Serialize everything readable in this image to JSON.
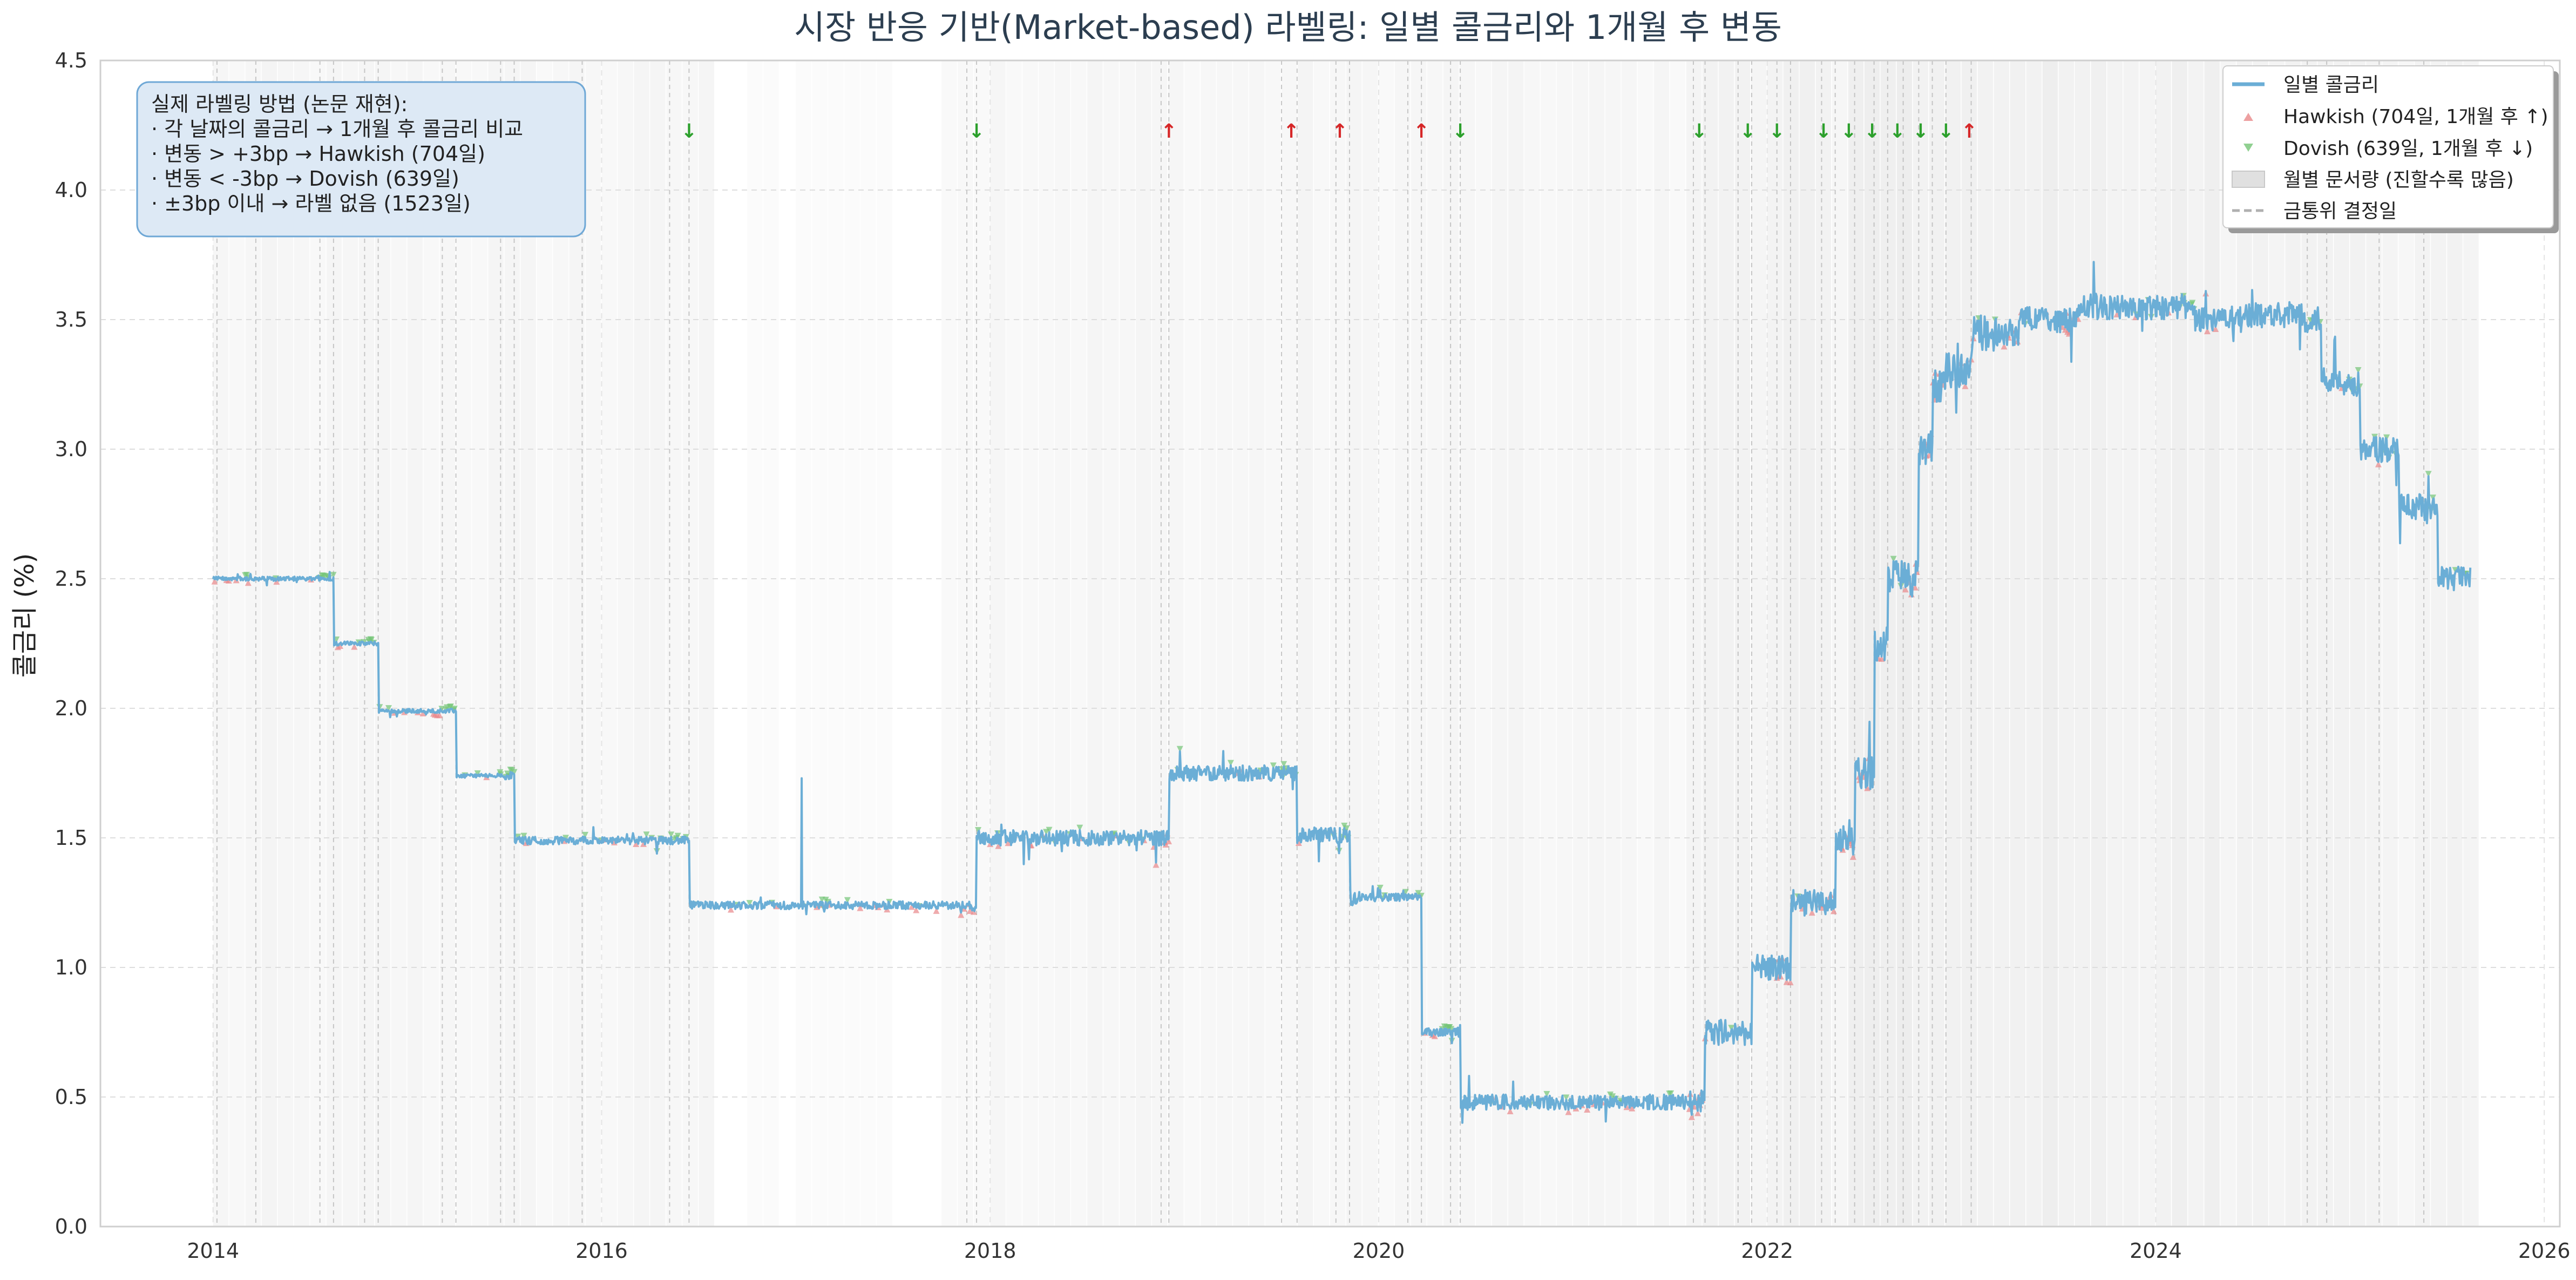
{
  "chart_data": {
    "type": "line",
    "title": "시장 반응 기반(Market-based) 라벨링: 일별 콜금리와 1개월 후 변동",
    "xlabel": "",
    "ylabel": "콜금리 (%)",
    "xlim": [
      2013.42,
      2026.08
    ],
    "ylim": [
      0.0,
      4.5
    ],
    "x_ticks": [
      {
        "value": 2014,
        "label": "2014"
      },
      {
        "value": 2016,
        "label": "2016"
      },
      {
        "value": 2018,
        "label": "2018"
      },
      {
        "value": 2020,
        "label": "2020"
      },
      {
        "value": 2022,
        "label": "2022"
      },
      {
        "value": 2024,
        "label": "2024"
      },
      {
        "value": 2026,
        "label": "2026"
      }
    ],
    "y_ticks": [
      {
        "value": 0.0,
        "label": "0.0"
      },
      {
        "value": 0.5,
        "label": "0.5"
      },
      {
        "value": 1.0,
        "label": "1.0"
      },
      {
        "value": 1.5,
        "label": "1.5"
      },
      {
        "value": 2.0,
        "label": "2.0"
      },
      {
        "value": 2.5,
        "label": "2.5"
      },
      {
        "value": 3.0,
        "label": "3.0"
      },
      {
        "value": 3.5,
        "label": "3.5"
      },
      {
        "value": 4.0,
        "label": "4.0"
      },
      {
        "value": 4.5,
        "label": "4.5"
      }
    ],
    "grid": true,
    "colors": {
      "line": "#6baed6",
      "hawkish": "#e8888a",
      "dovish": "#74c476",
      "decision": "#b0b0b0",
      "arrow_up": "#d62728",
      "arrow_down": "#2ca02c",
      "title": "#2c3e50",
      "annotation_fill": "#dde9f5",
      "annotation_border": "#6fa8d6"
    },
    "series": [
      {
        "name": "일별 콜금리",
        "kind": "step",
        "x": [
          2014.0,
          2014.55,
          2014.62,
          2014.78,
          2014.85,
          2015.18,
          2015.25,
          2015.48,
          2015.55,
          2016.35,
          2016.45,
          2017.88,
          2017.93,
          2018.88,
          2018.92,
          2019.5,
          2019.58,
          2019.78,
          2019.85,
          2020.15,
          2020.22,
          2020.37,
          2020.42,
          2021.62,
          2021.68,
          2021.85,
          2021.92,
          2022.05,
          2022.12,
          2022.28,
          2022.35,
          2022.45,
          2022.55,
          2022.62,
          2022.7,
          2022.78,
          2022.85,
          2022.92,
          2023.05,
          2023.3,
          2023.6,
          2023.9,
          2024.2,
          2024.45,
          2024.75,
          2024.85,
          2024.95,
          2025.05,
          2025.15,
          2025.25,
          2025.38,
          2025.45,
          2025.62
        ],
        "y": [
          2.5,
          2.5,
          2.25,
          2.25,
          1.99,
          1.99,
          1.74,
          1.74,
          1.49,
          1.49,
          1.24,
          1.24,
          1.5,
          1.5,
          1.75,
          1.75,
          1.51,
          1.51,
          1.27,
          1.27,
          0.75,
          0.75,
          0.48,
          0.48,
          0.75,
          0.75,
          1.0,
          1.0,
          1.25,
          1.25,
          1.5,
          1.75,
          2.25,
          2.5,
          2.5,
          3.0,
          3.25,
          3.3,
          3.45,
          3.5,
          3.55,
          3.55,
          3.5,
          3.52,
          3.5,
          3.27,
          3.25,
          3.0,
          3.0,
          2.78,
          2.76,
          2.5,
          2.5
        ]
      },
      {
        "name": "Hawkish (704일, 1개월 후 ↑)",
        "kind": "scatter",
        "marker": "triangle-up",
        "count": 704
      },
      {
        "name": "Dovish (639일, 1개월 후 ↓)",
        "kind": "scatter",
        "marker": "triangle-down",
        "count": 639
      }
    ],
    "spikes": [
      {
        "x": 2017.03,
        "y": 1.73
      }
    ],
    "monthly_shading_range": [
      2014.0,
      2025.62
    ],
    "decision_dates": [
      2014.02,
      2014.22,
      2014.55,
      2014.62,
      2014.78,
      2014.85,
      2015.18,
      2015.25,
      2015.48,
      2015.55,
      2015.9,
      2016.35,
      2016.45,
      2017.88,
      2017.93,
      2018.88,
      2018.92,
      2019.5,
      2019.58,
      2019.78,
      2019.85,
      2020.15,
      2020.22,
      2020.37,
      2020.42,
      2021.62,
      2021.68,
      2021.85,
      2021.92,
      2022.05,
      2022.12,
      2022.28,
      2022.35,
      2022.45,
      2022.55,
      2022.62,
      2022.7,
      2022.78,
      2022.85,
      2022.92,
      2023.05,
      2024.78,
      2024.88,
      2025.15,
      2025.38
    ],
    "decision_arrows": [
      {
        "x": 2016.45,
        "dir": "down",
        "symbol": "↓"
      },
      {
        "x": 2017.93,
        "dir": "down",
        "symbol": "↓"
      },
      {
        "x": 2018.92,
        "dir": "up",
        "symbol": "↑"
      },
      {
        "x": 2019.55,
        "dir": "up",
        "symbol": "↑"
      },
      {
        "x": 2019.8,
        "dir": "up",
        "symbol": "↑"
      },
      {
        "x": 2020.22,
        "dir": "up",
        "symbol": "↑"
      },
      {
        "x": 2020.42,
        "dir": "down",
        "symbol": "↓"
      },
      {
        "x": 2021.65,
        "dir": "down",
        "symbol": "↓"
      },
      {
        "x": 2021.9,
        "dir": "down",
        "symbol": "↓"
      },
      {
        "x": 2022.05,
        "dir": "down",
        "symbol": "↓"
      },
      {
        "x": 2022.29,
        "dir": "down",
        "symbol": "↓"
      },
      {
        "x": 2022.42,
        "dir": "down",
        "symbol": "↓"
      },
      {
        "x": 2022.54,
        "dir": "down",
        "symbol": "↓"
      },
      {
        "x": 2022.67,
        "dir": "down",
        "symbol": "↓"
      },
      {
        "x": 2022.79,
        "dir": "down",
        "symbol": "↓"
      },
      {
        "x": 2022.92,
        "dir": "down",
        "symbol": "↓"
      },
      {
        "x": 2023.04,
        "dir": "up",
        "symbol": "↑"
      }
    ],
    "annotation": {
      "lines": [
        "실제 라벨링 방법 (논문 재현):",
        "· 각 날짜의 콜금리 → 1개월 후 콜금리 비교",
        "· 변동 > +3bp → Hawkish (704일)",
        "· 변동 < -3bp → Dovish (639일)",
        "· ±3bp 이내 → 라벨 없음 (1523일)"
      ],
      "placement": "top-left"
    },
    "legend": {
      "placement": "top-right",
      "items": [
        {
          "label": "일별 콜금리",
          "marker": "line"
        },
        {
          "label": "Hawkish (704일, 1개월 후 ↑)",
          "marker": "triangle-up"
        },
        {
          "label": "Dovish (639일, 1개월 후 ↓)",
          "marker": "triangle-down"
        },
        {
          "label": "월별 문서량 (진할수록 많음)",
          "marker": "patch"
        },
        {
          "label": "금통위 결정일",
          "marker": "dashed"
        }
      ]
    }
  }
}
